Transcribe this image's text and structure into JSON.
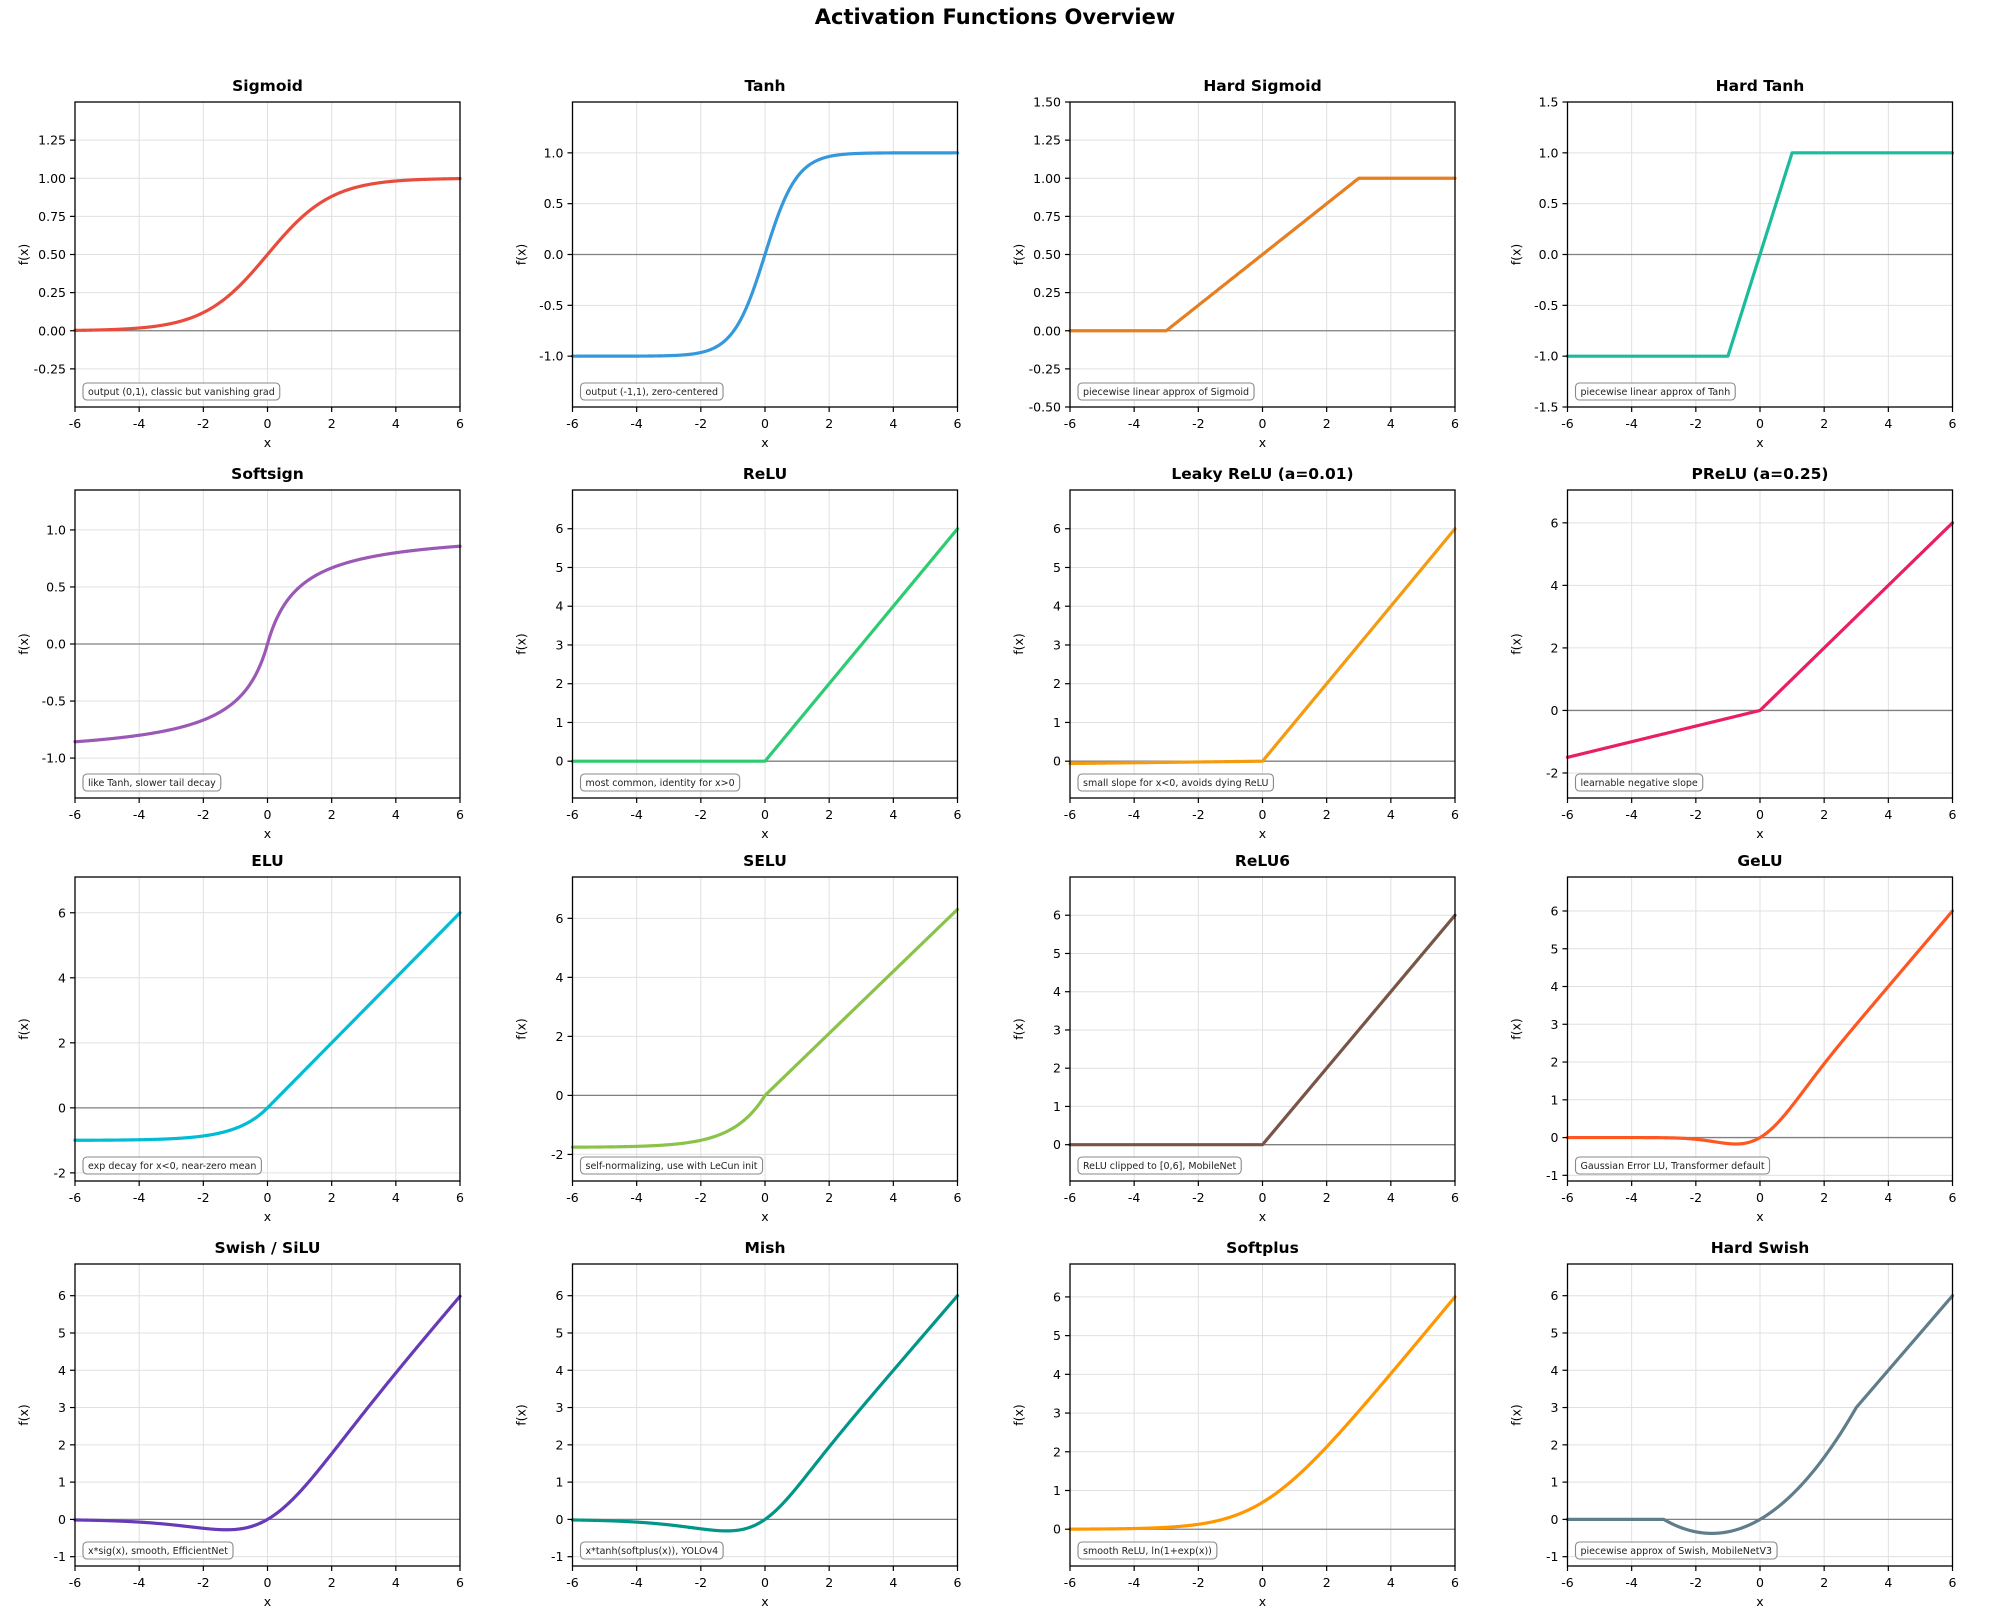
{
  "title": "Activation Functions Overview",
  "chart_data": {
    "type": "line",
    "grid": {
      "rows": 4,
      "cols": 4,
      "gridlines": true
    },
    "xlabel": "x",
    "ylabel": "f(x)",
    "xlim": [
      -6,
      6
    ],
    "xticks": [
      -6,
      -4,
      -2,
      0,
      2,
      4,
      6
    ],
    "xtick_labels": [
      "-6",
      "-4",
      "-2",
      "0",
      "2",
      "4",
      "6"
    ],
    "zero_line_color": "#808080",
    "grid_color": "#e0e0e0",
    "plots": [
      {
        "fn": "sigmoid",
        "title": "Sigmoid",
        "color": "#e74c3c",
        "annotation": "output (0,1), classic but vanishing grad",
        "ylim": [
          -0.5,
          1.5
        ],
        "yticks": [
          -0.25,
          0,
          0.25,
          0.5,
          0.75,
          1,
          1.25
        ],
        "ytick_labels": [
          "-0.25",
          "0.00",
          "0.25",
          "0.50",
          "0.75",
          "1.00",
          "1.25"
        ],
        "samples": {
          "x": [
            -6,
            -5,
            -4,
            -3,
            -2,
            -1,
            0,
            1,
            2,
            3,
            4,
            5,
            6
          ],
          "y": [
            0.002,
            0.007,
            0.018,
            0.047,
            0.119,
            0.269,
            0.5,
            0.731,
            0.881,
            0.953,
            0.982,
            0.993,
            0.998
          ]
        }
      },
      {
        "fn": "tanh",
        "title": "Tanh",
        "color": "#3498db",
        "annotation": "output (-1,1), zero-centered",
        "ylim": [
          -1.5,
          1.5
        ],
        "yticks": [
          -1,
          -0.5,
          0,
          0.5,
          1
        ],
        "ytick_labels": [
          "-1.0",
          "-0.5",
          "0.0",
          "0.5",
          "1.0"
        ],
        "samples": {
          "x": [
            -6,
            -5,
            -4,
            -3,
            -2,
            -1,
            0,
            1,
            2,
            3,
            4,
            5,
            6
          ],
          "y": [
            -1,
            -1,
            -0.999,
            -0.995,
            -0.964,
            -0.762,
            0,
            0.762,
            0.964,
            0.995,
            0.999,
            1,
            1
          ]
        }
      },
      {
        "fn": "hard_sigmoid",
        "title": "Hard Sigmoid",
        "color": "#e67e22",
        "annotation": "piecewise linear approx of Sigmoid",
        "ylim": [
          -0.5,
          1.5
        ],
        "yticks": [
          -0.5,
          -0.25,
          0,
          0.25,
          0.5,
          0.75,
          1,
          1.25,
          1.5
        ],
        "ytick_labels": [
          "-0.50",
          "-0.25",
          "0.00",
          "0.25",
          "0.50",
          "0.75",
          "1.00",
          "1.25",
          "1.50"
        ],
        "samples": {
          "x": [
            -6,
            -5,
            -4,
            -3,
            -2,
            -1,
            0,
            1,
            2,
            3,
            4,
            5,
            6
          ],
          "y": [
            0,
            0,
            0,
            0,
            0.167,
            0.333,
            0.5,
            0.667,
            0.833,
            1,
            1,
            1,
            1
          ]
        }
      },
      {
        "fn": "hard_tanh",
        "title": "Hard Tanh",
        "color": "#1abc9c",
        "annotation": "piecewise linear approx of Tanh",
        "ylim": [
          -1.5,
          1.5
        ],
        "yticks": [
          -1.5,
          -1,
          -0.5,
          0,
          0.5,
          1,
          1.5
        ],
        "ytick_labels": [
          "-1.5",
          "-1.0",
          "-0.5",
          "0.0",
          "0.5",
          "1.0",
          "1.5"
        ],
        "samples": {
          "x": [
            -6,
            -5,
            -4,
            -3,
            -2,
            -1,
            0,
            1,
            2,
            3,
            4,
            5,
            6
          ],
          "y": [
            -1,
            -1,
            -1,
            -1,
            -1,
            -1,
            0,
            1,
            1,
            1,
            1,
            1,
            1
          ]
        }
      },
      {
        "fn": "softsign",
        "title": "Softsign",
        "color": "#9b59b6",
        "annotation": "like Tanh, slower tail decay",
        "ylim": [
          -1.35,
          1.35
        ],
        "yticks": [
          -1,
          -0.5,
          0,
          0.5,
          1
        ],
        "ytick_labels": [
          "-1.0",
          "-0.5",
          "0.0",
          "0.5",
          "1.0"
        ],
        "samples": {
          "x": [
            -6,
            -5,
            -4,
            -3,
            -2,
            -1,
            0,
            1,
            2,
            3,
            4,
            5,
            6
          ],
          "y": [
            -0.857,
            -0.833,
            -0.8,
            -0.75,
            -0.667,
            -0.5,
            0,
            0.5,
            0.667,
            0.75,
            0.8,
            0.833,
            0.857
          ]
        }
      },
      {
        "fn": "relu",
        "title": "ReLU",
        "color": "#2ecc71",
        "annotation": "most common, identity for x>0",
        "ylim": [
          -0.95,
          7.0
        ],
        "yticks": [
          0,
          1,
          2,
          3,
          4,
          5,
          6
        ],
        "ytick_labels": [
          "0",
          "1",
          "2",
          "3",
          "4",
          "5",
          "6"
        ],
        "samples": {
          "x": [
            -6,
            -5,
            -4,
            -3,
            -2,
            -1,
            0,
            1,
            2,
            3,
            4,
            5,
            6
          ],
          "y": [
            0,
            0,
            0,
            0,
            0,
            0,
            0,
            1,
            2,
            3,
            4,
            5,
            6
          ]
        }
      },
      {
        "fn": "leaky_relu",
        "title": "Leaky ReLU (a=0.01)",
        "color": "#f39c12",
        "annotation": "small slope for x<0, avoids dying ReLU",
        "ylim": [
          -0.95,
          7.0
        ],
        "yticks": [
          0,
          1,
          2,
          3,
          4,
          5,
          6
        ],
        "ytick_labels": [
          "0",
          "1",
          "2",
          "3",
          "4",
          "5",
          "6"
        ],
        "samples": {
          "x": [
            -6,
            -5,
            -4,
            -3,
            -2,
            -1,
            0,
            1,
            2,
            3,
            4,
            5,
            6
          ],
          "y": [
            -0.06,
            -0.05,
            -0.04,
            -0.03,
            -0.02,
            -0.01,
            0,
            1,
            2,
            3,
            4,
            5,
            6
          ]
        }
      },
      {
        "fn": "prelu",
        "title": "PReLU (a=0.25)",
        "color": "#e91e63",
        "annotation": "learnable negative slope",
        "ylim": [
          -2.8,
          7.05
        ],
        "yticks": [
          -2,
          0,
          2,
          4,
          6
        ],
        "ytick_labels": [
          "-2",
          "0",
          "2",
          "4",
          "6"
        ],
        "samples": {
          "x": [
            -6,
            -5,
            -4,
            -3,
            -2,
            -1,
            0,
            1,
            2,
            3,
            4,
            5,
            6
          ],
          "y": [
            -1.5,
            -1.25,
            -1,
            -0.75,
            -0.5,
            -0.25,
            0,
            1,
            2,
            3,
            4,
            5,
            6
          ]
        }
      },
      {
        "fn": "elu",
        "title": "ELU",
        "color": "#00bcd4",
        "annotation": "exp decay for x<0, near-zero mean",
        "ylim": [
          -2.25,
          7.1
        ],
        "yticks": [
          -2,
          0,
          2,
          4,
          6
        ],
        "ytick_labels": [
          "-2",
          "0",
          "2",
          "4",
          "6"
        ],
        "samples": {
          "x": [
            -6,
            -5,
            -4,
            -3,
            -2,
            -1,
            0,
            1,
            2,
            3,
            4,
            5,
            6
          ],
          "y": [
            -0.998,
            -0.993,
            -0.982,
            -0.95,
            -0.865,
            -0.632,
            0,
            1,
            2,
            3,
            4,
            5,
            6
          ]
        }
      },
      {
        "fn": "selu",
        "title": "SELU",
        "color": "#8bc34a",
        "annotation": "self-normalizing, use with LeCun init",
        "ylim": [
          -2.9,
          7.4
        ],
        "yticks": [
          -2,
          0,
          2,
          4,
          6
        ],
        "ytick_labels": [
          "-2",
          "0",
          "2",
          "4",
          "6"
        ],
        "samples": {
          "x": [
            -6,
            -5,
            -4,
            -3,
            -2,
            -1,
            0,
            1,
            2,
            3,
            4,
            5,
            6
          ],
          "y": [
            -1.754,
            -1.746,
            -1.726,
            -1.671,
            -1.52,
            -1.111,
            0,
            1.051,
            2.101,
            3.152,
            4.203,
            5.254,
            6.304
          ]
        }
      },
      {
        "fn": "relu6",
        "title": "ReLU6",
        "color": "#795548",
        "annotation": "ReLU clipped to [0,6], MobileNet",
        "ylim": [
          -0.95,
          7.0
        ],
        "yticks": [
          0,
          1,
          2,
          3,
          4,
          5,
          6
        ],
        "ytick_labels": [
          "0",
          "1",
          "2",
          "3",
          "4",
          "5",
          "6"
        ],
        "samples": {
          "x": [
            -6,
            -5,
            -4,
            -3,
            -2,
            -1,
            0,
            1,
            2,
            3,
            4,
            5,
            6
          ],
          "y": [
            0,
            0,
            0,
            0,
            0,
            0,
            0,
            1,
            2,
            3,
            4,
            5,
            6
          ]
        }
      },
      {
        "fn": "gelu",
        "title": "GeLU",
        "color": "#ff5722",
        "annotation": "Gaussian Error LU, Transformer default",
        "ylim": [
          -1.15,
          6.9
        ],
        "yticks": [
          -1,
          0,
          1,
          2,
          3,
          4,
          5,
          6
        ],
        "ytick_labels": [
          "-1",
          "0",
          "1",
          "2",
          "3",
          "4",
          "5",
          "6"
        ],
        "samples": {
          "x": [
            -6,
            -5,
            -4,
            -3,
            -2,
            -1,
            0,
            1,
            2,
            3,
            4,
            5,
            6
          ],
          "y": [
            0,
            0,
            0,
            -0.004,
            -0.045,
            -0.159,
            0,
            0.841,
            1.954,
            2.996,
            4,
            5,
            6
          ]
        }
      },
      {
        "fn": "swish",
        "title": "Swish / SiLU",
        "color": "#673ab7",
        "annotation": "x*sig(x), smooth, EfficientNet",
        "ylim": [
          -1.25,
          6.85
        ],
        "yticks": [
          -1,
          0,
          1,
          2,
          3,
          4,
          5,
          6
        ],
        "ytick_labels": [
          "-1",
          "0",
          "1",
          "2",
          "3",
          "4",
          "5",
          "6"
        ],
        "samples": {
          "x": [
            -6,
            -5,
            -4,
            -3,
            -2,
            -1,
            0,
            1,
            2,
            3,
            4,
            5,
            6
          ],
          "y": [
            -0.015,
            -0.033,
            -0.072,
            -0.142,
            -0.238,
            -0.269,
            0,
            0.731,
            1.762,
            2.857,
            3.928,
            4.967,
            5.985
          ]
        }
      },
      {
        "fn": "mish",
        "title": "Mish",
        "color": "#009688",
        "annotation": "x*tanh(softplus(x)), YOLOv4",
        "ylim": [
          -1.25,
          6.85
        ],
        "yticks": [
          -1,
          0,
          1,
          2,
          3,
          4,
          5,
          6
        ],
        "ytick_labels": [
          "-1",
          "0",
          "1",
          "2",
          "3",
          "4",
          "5",
          "6"
        ],
        "samples": {
          "x": [
            -6,
            -5,
            -4,
            -3,
            -2,
            -1,
            0,
            1,
            2,
            3,
            4,
            5,
            6
          ],
          "y": [
            -0.015,
            -0.033,
            -0.072,
            -0.146,
            -0.252,
            -0.303,
            0,
            0.865,
            1.944,
            2.987,
            3.998,
            5,
            6
          ]
        }
      },
      {
        "fn": "softplus",
        "title": "Softplus",
        "color": "#ff9800",
        "annotation": "smooth ReLU, ln(1+exp(x))",
        "ylim": [
          -0.95,
          6.85
        ],
        "yticks": [
          0,
          1,
          2,
          3,
          4,
          5,
          6
        ],
        "ytick_labels": [
          "0",
          "1",
          "2",
          "3",
          "4",
          "5",
          "6"
        ],
        "samples": {
          "x": [
            -6,
            -5,
            -4,
            -3,
            -2,
            -1,
            0,
            1,
            2,
            3,
            4,
            5,
            6
          ],
          "y": [
            0.002,
            0.007,
            0.018,
            0.049,
            0.127,
            0.313,
            0.693,
            1.313,
            2.127,
            3.049,
            4.018,
            5.007,
            6.002
          ]
        }
      },
      {
        "fn": "hard_swish",
        "title": "Hard Swish",
        "color": "#607d8b",
        "annotation": "piecewise approx of Swish, MobileNetV3",
        "ylim": [
          -1.25,
          6.85
        ],
        "yticks": [
          -1,
          0,
          1,
          2,
          3,
          4,
          5,
          6
        ],
        "ytick_labels": [
          "-1",
          "0",
          "1",
          "2",
          "3",
          "4",
          "5",
          "6"
        ],
        "samples": {
          "x": [
            -6,
            -5,
            -4,
            -3,
            -2,
            -1,
            0,
            1,
            2,
            3,
            4,
            5,
            6
          ],
          "y": [
            0,
            0,
            0,
            0,
            -0.333,
            -0.333,
            0,
            0.667,
            1.667,
            3,
            4,
            5,
            6
          ]
        }
      }
    ]
  }
}
